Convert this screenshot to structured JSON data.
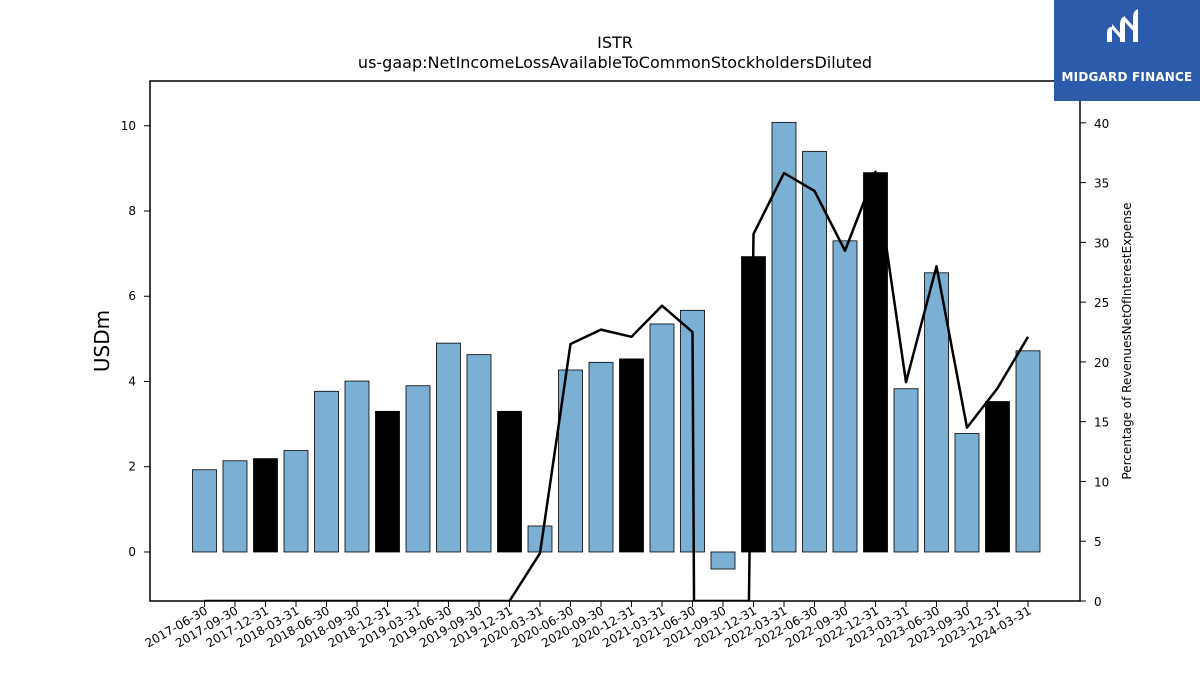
{
  "logo": {
    "text": "MIDGARD FINANCE",
    "icon": "midgard-logo-icon",
    "bg_color": "#2d5bab"
  },
  "chart_data": {
    "type": "bar",
    "title": "ISTR",
    "subtitle": "us-gaap:NetIncomeLossAvailableToCommonStockholdersDiluted",
    "ylabel": "USDm",
    "y2label": "Percentage of RevenuesNetOfInterestExpense",
    "ylim": [
      -1.15,
      11.05
    ],
    "y2lim": [
      0,
      43.5
    ],
    "yticks": [
      0,
      2,
      4,
      6,
      8,
      10
    ],
    "y2ticks": [
      0,
      5,
      10,
      15,
      20,
      25,
      30,
      35,
      40
    ],
    "grid": false,
    "categories": [
      "2017-06-30",
      "2017-09-30",
      "2017-12-31",
      "2018-03-31",
      "2018-06-30",
      "2018-09-30",
      "2018-12-31",
      "2019-03-31",
      "2019-06-30",
      "2019-09-30",
      "2019-12-31",
      "2020-03-31",
      "2020-06-30",
      "2020-09-30",
      "2020-12-31",
      "2021-03-31",
      "2021-06-30",
      "2021-09-30",
      "2021-12-31",
      "2022-03-31",
      "2022-06-30",
      "2022-09-30",
      "2022-12-31",
      "2023-03-31",
      "2023-06-30",
      "2023-09-30",
      "2023-12-31",
      "2024-03-31"
    ],
    "series": [
      {
        "type": "bar",
        "axis": "left",
        "values": [
          1.93,
          2.14,
          2.19,
          2.38,
          3.77,
          4.01,
          3.3,
          3.9,
          4.9,
          4.63,
          3.3,
          0.61,
          4.27,
          4.45,
          4.53,
          5.35,
          5.67,
          -0.4,
          6.93,
          10.08,
          9.4,
          7.3,
          8.9,
          3.83,
          6.55,
          2.78,
          3.53,
          4.72
        ],
        "colors": [
          "#7bafd4",
          "#7bafd4",
          "#000000",
          "#7bafd4",
          "#7bafd4",
          "#7bafd4",
          "#000000",
          "#7bafd4",
          "#7bafd4",
          "#7bafd4",
          "#000000",
          "#7bafd4",
          "#7bafd4",
          "#7bafd4",
          "#000000",
          "#7bafd4",
          "#7bafd4",
          "#7bafd4",
          "#000000",
          "#7bafd4",
          "#7bafd4",
          "#7bafd4",
          "#000000",
          "#7bafd4",
          "#7bafd4",
          "#7bafd4",
          "#000000",
          "#7bafd4"
        ]
      },
      {
        "type": "line",
        "axis": "right",
        "color": "#000000",
        "x": [
          0,
          1,
          2,
          3,
          4,
          5,
          6,
          7,
          8,
          9,
          10,
          11,
          12,
          13,
          14,
          15,
          16,
          16.05,
          17,
          17.85,
          18,
          19,
          20,
          21,
          22,
          23,
          24,
          25,
          26,
          27
        ],
        "values": [
          0,
          0,
          0,
          0,
          0,
          0,
          0,
          0,
          0,
          0,
          0,
          4,
          21.5,
          22.7,
          22.1,
          24.7,
          22.5,
          0,
          0,
          0,
          30.7,
          35.8,
          34.3,
          29.3,
          35.9,
          18.3,
          28,
          14.5,
          17.8,
          22.1
        ]
      }
    ]
  }
}
